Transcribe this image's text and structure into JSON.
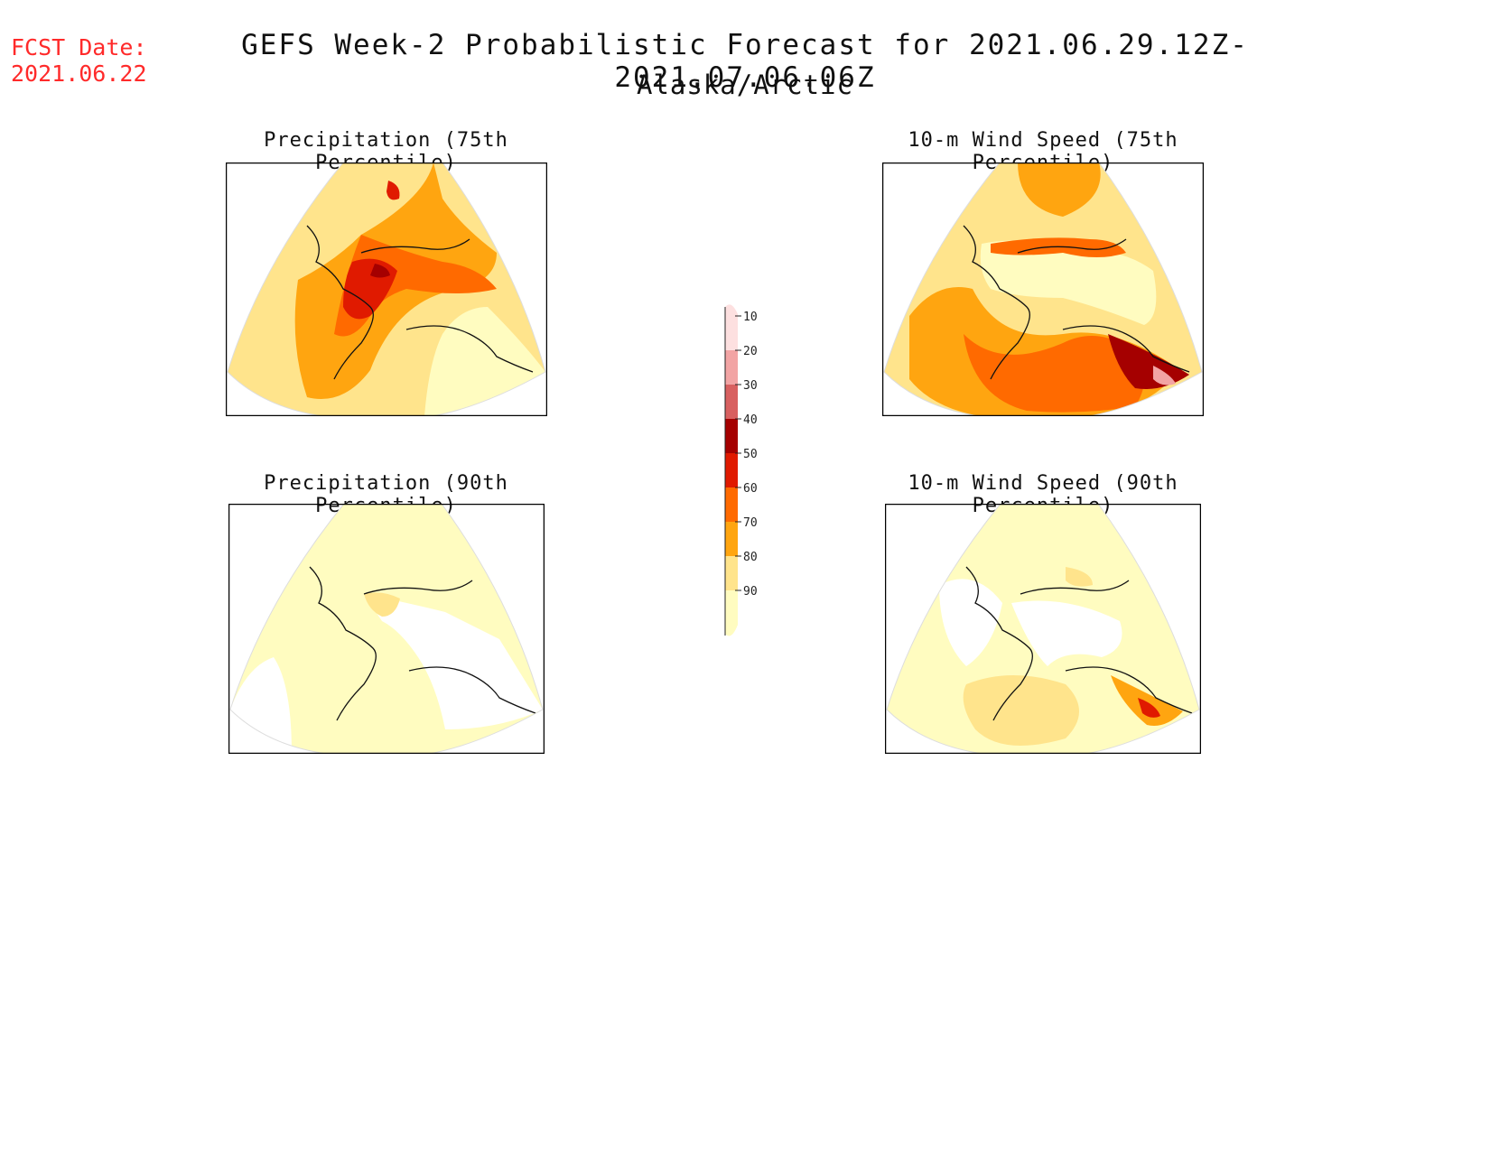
{
  "header": {
    "fcst_label": "FCST Date:",
    "fcst_date": "2021.06.22",
    "title": "GEFS Week-2 Probabilistic Forecast for 2021.06.29.12Z-2021.07.06.06Z",
    "region": "Alaska/Arctic"
  },
  "panels": [
    {
      "id": "precip75",
      "title": "Precipitation (75th Percentile)"
    },
    {
      "id": "wind75",
      "title": "10-m Wind Speed (75th Percentile)"
    },
    {
      "id": "precip90",
      "title": "Precipitation (90th Percentile)"
    },
    {
      "id": "wind90",
      "title": "10-m Wind Speed (90th Percentile)"
    }
  ],
  "colorbar": {
    "levels": [
      "10",
      "20",
      "30",
      "40",
      "50",
      "60",
      "70",
      "80",
      "90"
    ],
    "colors": [
      "#fffcc0",
      "#ffe48c",
      "#ffa510",
      "#ff6a00",
      "#e01a00",
      "#a50000",
      "#d86060",
      "#f2a4a4",
      "#fde0e0"
    ]
  }
}
